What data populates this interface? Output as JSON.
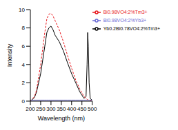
{
  "chart_data": {
    "type": "line",
    "x_label": "Wavelength (nm)",
    "y_label": "Intensity",
    "x": [
      200,
      220,
      230,
      250,
      270,
      280,
      290,
      300,
      310,
      320,
      340,
      360,
      380,
      400,
      420,
      440,
      460,
      470,
      475,
      478,
      481,
      485,
      490,
      500
    ],
    "xlim": [
      200,
      500
    ],
    "xticks": [
      200,
      250,
      300,
      350,
      400,
      450,
      500
    ],
    "ylim": [
      0,
      10
    ],
    "yticks": [
      0,
      2,
      4,
      6,
      8,
      10
    ],
    "grid": false,
    "legend": "upper right",
    "series": [
      {
        "name": "Yb0.2Bi0.78VO4:2%Tm3+",
        "color": "#000000",
        "line_style": "solid",
        "values": [
          0,
          0.4,
          1,
          3,
          6,
          7.5,
          8,
          8.2,
          7.8,
          7.2,
          6.5,
          5.5,
          4.2,
          3,
          2,
          1,
          0.3,
          0.5,
          4,
          7.5,
          6,
          2,
          0.3,
          0.1
        ]
      },
      {
        "name": "Bi0.98VO4:2%Tm3+",
        "color": "#e8161b",
        "line_style": "dashed",
        "values": [
          0,
          0.5,
          1.2,
          4,
          7.5,
          9,
          9.5,
          9.6,
          9.3,
          8.8,
          7.8,
          6.5,
          5,
          3.6,
          2.3,
          1.3,
          0.5,
          0.3,
          0.2,
          0.15,
          0.1,
          0.1,
          0.05,
          0
        ]
      },
      {
        "name": "Bi0.98VO4:2%Yb3+",
        "color": "#6b6bd6",
        "line_style": "solid",
        "values": [
          0.1,
          0.1,
          0.1,
          0.1,
          0.1,
          0.1,
          0.1,
          0.1,
          0.1,
          0.1,
          0.1,
          0.1,
          0.1,
          0.1,
          0.1,
          0.1,
          0.1,
          0.1,
          0.1,
          0.1,
          0.1,
          0.1,
          0.1,
          0.1
        ]
      }
    ]
  }
}
